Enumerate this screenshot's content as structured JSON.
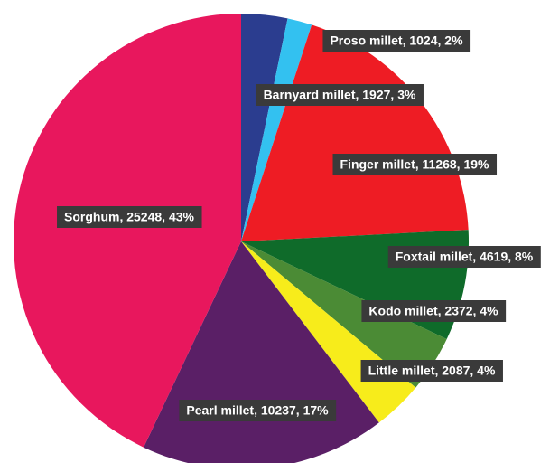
{
  "chart_data": {
    "type": "pie",
    "categories": [
      "Barnyard millet",
      "Proso millet",
      "Finger millet",
      "Foxtail millet",
      "Kodo millet",
      "Little millet",
      "Pearl millet",
      "Sorghum"
    ],
    "values": [
      1927,
      1024,
      11268,
      4619,
      2372,
      2087,
      10237,
      25248
    ],
    "value_labels": [
      "Barnyard millet, 1927, 3%",
      "Proso millet, 1024, 2%",
      "Finger millet, 11268, 19%",
      "Foxtail millet, 4619, 8%",
      "Kodo millet, 2372, 4%",
      "Little millet, 2087, 4%",
      "Pearl millet, 10237, 17%",
      "Sorghum, 25248, 43%"
    ],
    "colors": [
      "#2b3d8f",
      "#33c1f0",
      "#ee1c24",
      "#0f6b2a",
      "#4b8b35",
      "#f7ec1b",
      "#5a1f66",
      "#e8175d"
    ]
  }
}
